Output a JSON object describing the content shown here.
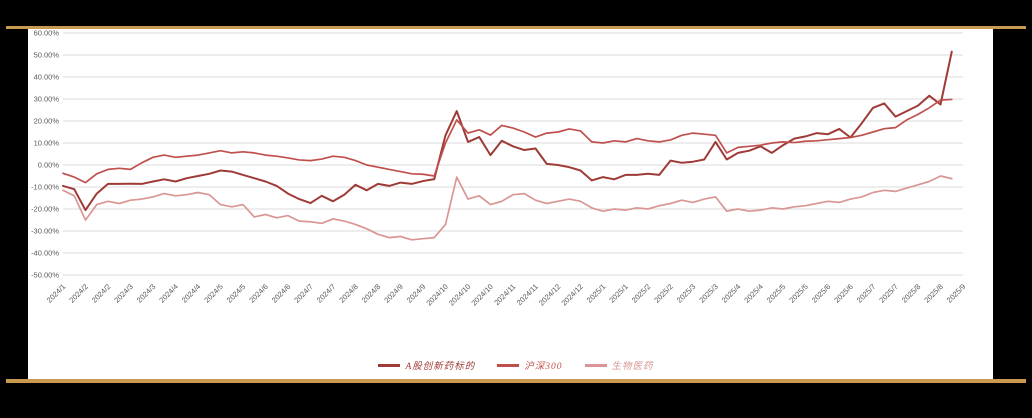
{
  "frame": {
    "background_color": "#000000",
    "border_color": "#C79A50",
    "panel_color": "#ffffff",
    "gridline_color": "#DBDBDB",
    "axis_label_color": "#595959"
  },
  "chart_data": {
    "type": "line",
    "title": "",
    "xlabel": "",
    "ylabel": "",
    "grid": true,
    "legend_position": "bottom",
    "y_axis": {
      "min": -50,
      "max": 60,
      "step": 10,
      "unit": "%",
      "tick_labels": [
        "60.00%",
        "50.00%",
        "40.00%",
        "30.00%",
        "20.00%",
        "10.00%",
        "0.00%",
        "-10.00%",
        "-20.00%",
        "-30.00%",
        "-40.00%",
        "-50.00%"
      ]
    },
    "x_labels": [
      "2024/1",
      "2024/2",
      "2024/2",
      "2024/3",
      "2024/3",
      "2024/4",
      "2024/4",
      "2024/5",
      "2024/5",
      "2024/6",
      "2024/6",
      "2024/7",
      "2024/7",
      "2024/8",
      "2024/8",
      "2024/9",
      "2024/9",
      "2024/10",
      "2024/10",
      "2024/10",
      "2024/11",
      "2024/11",
      "2024/12",
      "2024/12",
      "2025/1",
      "2025/1",
      "2025/2",
      "2025/2",
      "2025/3",
      "2025/3",
      "2025/4",
      "2025/4",
      "2025/5",
      "2025/5",
      "2025/6",
      "2025/6",
      "2025/7",
      "2025/7",
      "2025/8",
      "2025/8",
      "2025/9"
    ],
    "series": [
      {
        "name": "A股创新药标的",
        "color": "#9E3B37",
        "stroke_width": 2,
        "values": [
          -9.5,
          -11,
          -20.5,
          -13,
          -8.6,
          -8.6,
          -8.5,
          -8.6,
          -7.5,
          -6.5,
          -7.5,
          -6,
          -5,
          -4,
          -2.5,
          -3,
          -4.5,
          -6,
          -7.5,
          -9.5,
          -13,
          -15.5,
          -17.3,
          -14,
          -16.5,
          -13.5,
          -9,
          -11.5,
          -8.6,
          -9.5,
          -8,
          -8.6,
          -7.3,
          -6.4,
          13.5,
          24.5,
          10.5,
          12.7,
          4.5,
          11,
          8.5,
          6.8,
          7.5,
          0.5,
          0,
          -1,
          -2.5,
          -7,
          -5.5,
          -6.5,
          -4.5,
          -4.5,
          -4,
          -4.5,
          2,
          1,
          1.5,
          2.5,
          10.5,
          2.5,
          5.5,
          6.5,
          8.5,
          5.5,
          9,
          12,
          13,
          14.5,
          14,
          16.4,
          12.5,
          19,
          26,
          28,
          22,
          24.5,
          27,
          31.5,
          27.5,
          51.5
        ]
      },
      {
        "name": "沪深300",
        "color": "#C0504D",
        "stroke_width": 1.7,
        "values": [
          -3.8,
          -5.5,
          -8,
          -4,
          -2,
          -1.5,
          -2,
          1,
          3.5,
          4.5,
          3.5,
          4,
          4.5,
          5.5,
          6.5,
          5.5,
          6,
          5.5,
          4.5,
          4,
          3.2,
          2.3,
          2,
          2.7,
          4,
          3.5,
          2,
          0,
          -1,
          -2,
          -3,
          -4,
          -4.2,
          -5,
          10,
          20.5,
          14.5,
          16,
          13.6,
          18,
          16.8,
          15,
          12.7,
          14.5,
          15,
          16.4,
          15.5,
          10.5,
          10,
          11,
          10.5,
          12,
          11,
          10.5,
          11.4,
          13.5,
          14.5,
          14,
          13.5,
          5.5,
          8,
          8.5,
          9,
          10,
          10.5,
          10.2,
          10.8,
          11,
          11.5,
          12,
          12.5,
          13.5,
          15,
          16.5,
          17,
          20.5,
          23,
          26,
          29.5,
          29.8
        ]
      },
      {
        "name": "生物医药",
        "color": "#D99694",
        "stroke_width": 1.7,
        "values": [
          -11.5,
          -14,
          -25,
          -18,
          -16.5,
          -17.5,
          -16,
          -15.5,
          -14.5,
          -13,
          -14,
          -13.5,
          -12.5,
          -13.5,
          -18,
          -19,
          -18,
          -23.6,
          -22.5,
          -24,
          -23,
          -25.5,
          -25.8,
          -26.5,
          -24.5,
          -25.5,
          -27,
          -29,
          -31.5,
          -33,
          -32.5,
          -34,
          -33.5,
          -33,
          -27,
          -5.5,
          -15.5,
          -14,
          -18,
          -16.5,
          -13.5,
          -13,
          -16,
          -17.5,
          -16.5,
          -15.5,
          -16.5,
          -19.5,
          -21,
          -20,
          -20.5,
          -19.5,
          -20,
          -18.5,
          -17.5,
          -16,
          -17,
          -15.5,
          -14.5,
          -21,
          -20,
          -21,
          -20.5,
          -19.5,
          -20,
          -19,
          -18.5,
          -17.5,
          -16.5,
          -17,
          -15.5,
          -14.5,
          -12.5,
          -11.5,
          -12,
          -10.5,
          -9,
          -7.5,
          -5,
          -6.2
        ]
      }
    ]
  }
}
